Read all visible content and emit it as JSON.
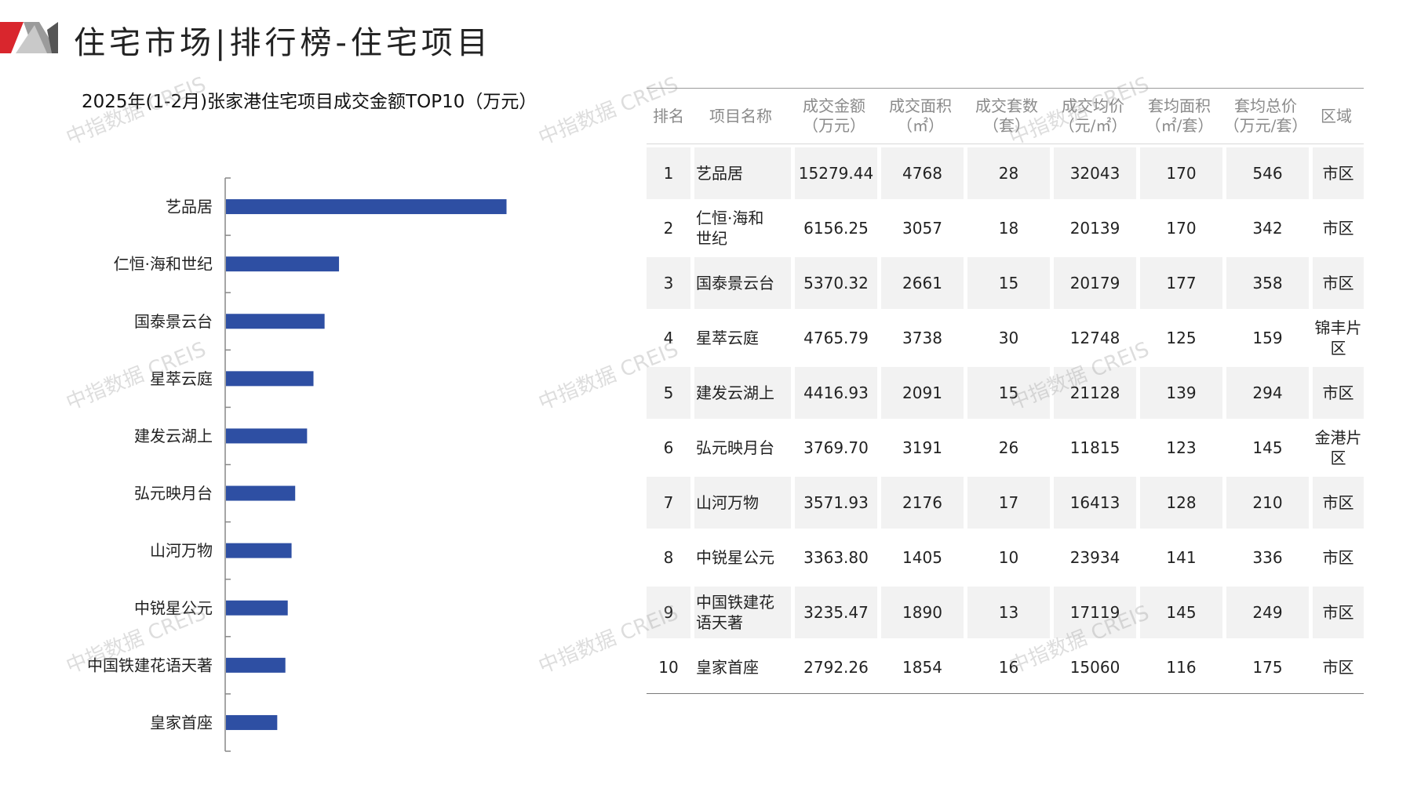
{
  "header": {
    "title": "住宅市场|排行榜-住宅项目"
  },
  "watermark": {
    "text": "中指数据 CREIS"
  },
  "chart_data": {
    "type": "bar",
    "orientation": "horizontal",
    "title": "2025年(1-2月)张家港住宅项目成交金额TOP10（万元）",
    "categories": [
      "艺品居",
      "仁恒·海和世纪",
      "国泰景云台",
      "星萃云庭",
      "建发云湖上",
      "弘元映月台",
      "山河万物",
      "中锐星公元",
      "中国铁建花语天著",
      "皇家首座"
    ],
    "values": [
      15279.44,
      6156.25,
      5370.32,
      4765.79,
      4416.93,
      3769.7,
      3571.93,
      3363.8,
      3235.47,
      2792.26
    ],
    "xlim": [
      0,
      20000
    ],
    "bar_color": "#2e4fa3",
    "grid": false,
    "legend": "none"
  },
  "table": {
    "headers": [
      [
        "排名"
      ],
      [
        "项目名称"
      ],
      [
        "成交金额",
        "（万元）"
      ],
      [
        "成交面积",
        "（㎡）"
      ],
      [
        "成交套数",
        "（套）"
      ],
      [
        "成交均价",
        "（元/㎡）"
      ],
      [
        "套均面积",
        "（㎡/套）"
      ],
      [
        "套均总价",
        "（万元/套）"
      ],
      [
        "区域"
      ]
    ],
    "rows": [
      [
        "1",
        "艺品居",
        "15279.44",
        "4768",
        "28",
        "32043",
        "170",
        "546",
        "市区"
      ],
      [
        "2",
        "仁恒·海和世纪",
        "6156.25",
        "3057",
        "18",
        "20139",
        "170",
        "342",
        "市区"
      ],
      [
        "3",
        "国泰景云台",
        "5370.32",
        "2661",
        "15",
        "20179",
        "177",
        "358",
        "市区"
      ],
      [
        "4",
        "星萃云庭",
        "4765.79",
        "3738",
        "30",
        "12748",
        "125",
        "159",
        "锦丰片区"
      ],
      [
        "5",
        "建发云湖上",
        "4416.93",
        "2091",
        "15",
        "21128",
        "139",
        "294",
        "市区"
      ],
      [
        "6",
        "弘元映月台",
        "3769.70",
        "3191",
        "26",
        "11815",
        "123",
        "145",
        "金港片区"
      ],
      [
        "7",
        "山河万物",
        "3571.93",
        "2176",
        "17",
        "16413",
        "128",
        "210",
        "市区"
      ],
      [
        "8",
        "中锐星公元",
        "3363.80",
        "1405",
        "10",
        "23934",
        "141",
        "336",
        "市区"
      ],
      [
        "9",
        "中国铁建花语天著",
        "3235.47",
        "1890",
        "13",
        "17119",
        "145",
        "249",
        "市区"
      ],
      [
        "10",
        "皇家首座",
        "2792.26",
        "1854",
        "16",
        "15060",
        "116",
        "175",
        "市区"
      ]
    ]
  }
}
